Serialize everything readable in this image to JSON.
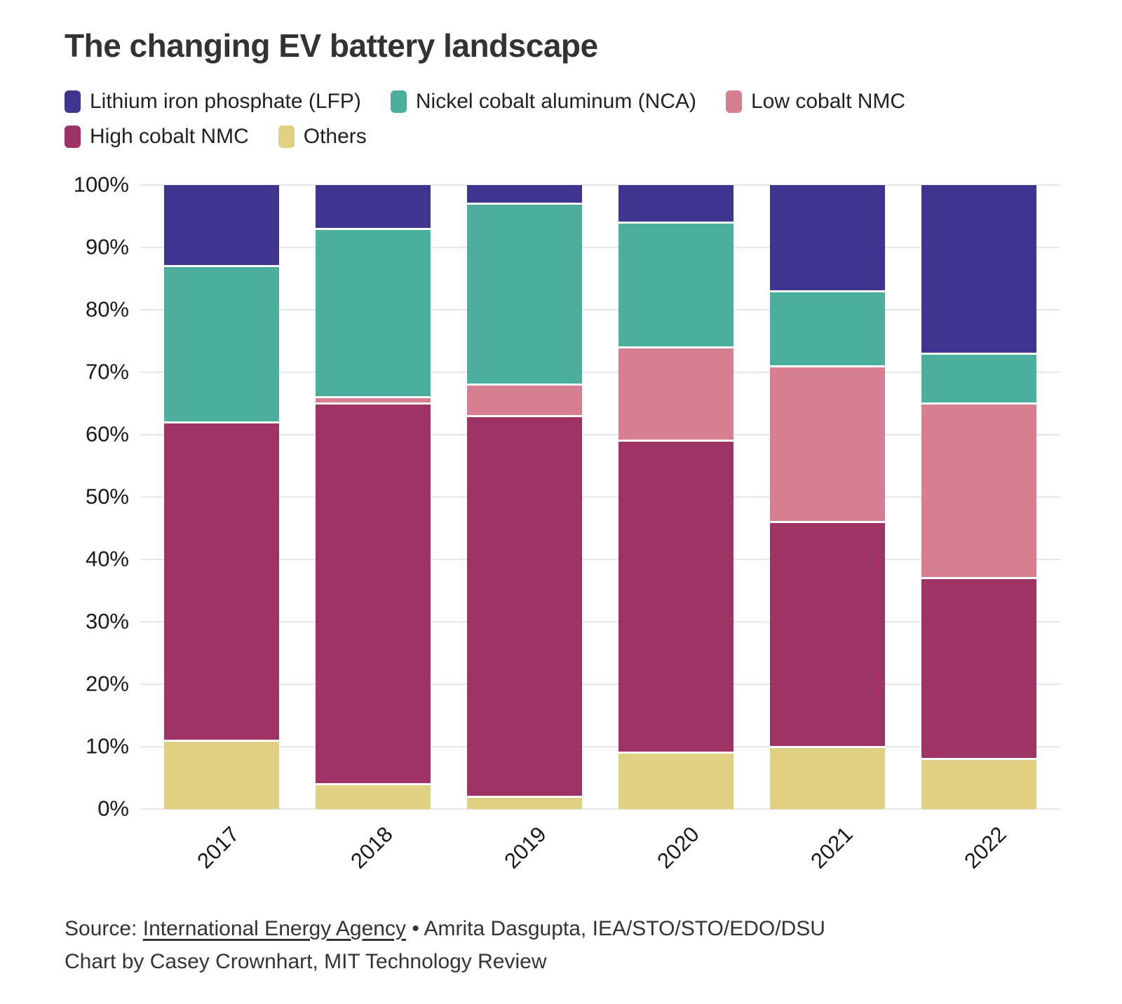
{
  "title": "The changing EV battery landscape",
  "legend": [
    {
      "label": "Lithium iron phosphate (LFP)",
      "color": "#3d3590"
    },
    {
      "label": "Nickel cobalt aluminum (NCA)",
      "color": "#4caf9e"
    },
    {
      "label": "Low cobalt NMC",
      "color": "#d87e91"
    },
    {
      "label": "High cobalt NMC",
      "color": "#9e3365"
    },
    {
      "label": "Others",
      "color": "#e0d182"
    }
  ],
  "source": {
    "prefix": "Source: ",
    "link": "International Energy Agency",
    "rest": " • Amrita Dasgupta, IEA/STO/STO/EDO/DSU",
    "byline": "Chart by Casey Crownhart, MIT Technology Review"
  },
  "chart_data": {
    "type": "bar",
    "stacked": true,
    "title": "The changing EV battery landscape",
    "xlabel": "",
    "ylabel": "",
    "ylim": [
      0,
      100
    ],
    "grid": "horizontal",
    "legend_position": "top",
    "categories": [
      "2017",
      "2018",
      "2019",
      "2020",
      "2021",
      "2022"
    ],
    "y_ticks": [
      "100%",
      "90%",
      "80%",
      "70%",
      "60%",
      "50%",
      "40%",
      "30%",
      "20%",
      "10%",
      "0%"
    ],
    "series": [
      {
        "name": "Others",
        "color": "#e0d182",
        "values": [
          11,
          4,
          2,
          9,
          10,
          8
        ]
      },
      {
        "name": "High cobalt NMC",
        "color": "#9e3365",
        "values": [
          51,
          61,
          61,
          50,
          36,
          29
        ]
      },
      {
        "name": "Low cobalt NMC",
        "color": "#d87e91",
        "values": [
          0,
          1,
          5,
          15,
          25,
          28
        ]
      },
      {
        "name": "Nickel cobalt aluminum (NCA)",
        "color": "#4caf9e",
        "values": [
          25,
          27,
          29,
          20,
          12,
          8
        ]
      },
      {
        "name": "Lithium iron phosphate (LFP)",
        "color": "#3d3590",
        "values": [
          13,
          7,
          3,
          6,
          17,
          27
        ]
      }
    ]
  }
}
